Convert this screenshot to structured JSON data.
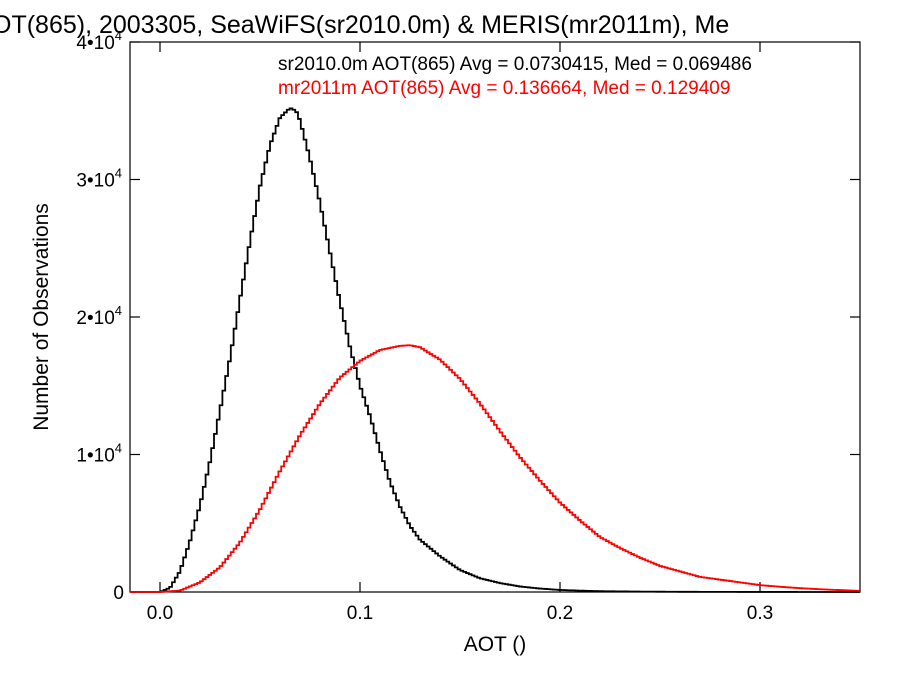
{
  "chart_data": {
    "type": "line",
    "title": "OT(865), 2003305, SeaWiFS(sr2010.0m) & MERIS(mr2011m), Me",
    "xlabel": "AOT ()",
    "ylabel": "Number of Observations",
    "xlim": [
      -0.015,
      0.35
    ],
    "ylim": [
      0,
      40000
    ],
    "grid": false,
    "x_ticks": [
      {
        "value": 0.0,
        "label": "0.0"
      },
      {
        "value": 0.1,
        "label": "0.1"
      },
      {
        "value": 0.2,
        "label": "0.2"
      },
      {
        "value": 0.3,
        "label": "0.3"
      }
    ],
    "y_ticks": [
      {
        "value": 0,
        "base": "0",
        "exp": ""
      },
      {
        "value": 10000,
        "base": "1•10",
        "exp": "4"
      },
      {
        "value": 20000,
        "base": "2•10",
        "exp": "4"
      },
      {
        "value": 30000,
        "base": "3•10",
        "exp": "4"
      },
      {
        "value": 40000,
        "base": "4•10",
        "exp": "4"
      }
    ],
    "annotations": [
      "sr2010.0m AOT(865) Avg = 0.0730415, Med = 0.069486",
      "mr2011m AOT(865) Avg = 0.136664, Med = 0.129409"
    ],
    "series": [
      {
        "color": "#000000",
        "x": [
          -0.015,
          -0.005,
          0.0,
          0.005,
          0.01,
          0.015,
          0.02,
          0.025,
          0.03,
          0.035,
          0.04,
          0.045,
          0.05,
          0.055,
          0.06,
          0.065,
          0.068,
          0.07,
          0.075,
          0.08,
          0.085,
          0.09,
          0.095,
          0.1,
          0.105,
          0.11,
          0.115,
          0.12,
          0.125,
          0.13,
          0.14,
          0.15,
          0.16,
          0.17,
          0.18,
          0.19,
          0.2,
          0.21,
          0.22,
          0.24,
          0.26,
          0.28,
          0.3,
          0.35
        ],
        "y": [
          0,
          0,
          0,
          300,
          1500,
          3700,
          6300,
          9500,
          13200,
          17000,
          21300,
          25500,
          29500,
          32500,
          34500,
          35200,
          35000,
          34300,
          31500,
          28300,
          24700,
          21100,
          17800,
          15000,
          12800,
          10300,
          8000,
          6200,
          4800,
          3800,
          2600,
          1600,
          1000,
          650,
          400,
          250,
          150,
          100,
          60,
          30,
          15,
          8,
          4,
          0
        ]
      },
      {
        "color": "#ff0000",
        "x": [
          -0.015,
          0.0,
          0.01,
          0.02,
          0.03,
          0.04,
          0.05,
          0.06,
          0.07,
          0.08,
          0.09,
          0.1,
          0.11,
          0.12,
          0.125,
          0.13,
          0.14,
          0.15,
          0.16,
          0.17,
          0.18,
          0.19,
          0.2,
          0.21,
          0.22,
          0.23,
          0.24,
          0.25,
          0.26,
          0.27,
          0.28,
          0.29,
          0.3,
          0.31,
          0.32,
          0.33,
          0.34,
          0.35
        ],
        "y": [
          0,
          0,
          100,
          700,
          1800,
          3600,
          6000,
          8800,
          11400,
          13700,
          15600,
          16800,
          17600,
          17900,
          17950,
          17800,
          16900,
          15500,
          13700,
          11700,
          9800,
          8100,
          6500,
          5200,
          4000,
          3200,
          2500,
          1900,
          1500,
          1100,
          900,
          700,
          500,
          380,
          280,
          200,
          140,
          80
        ]
      }
    ]
  }
}
